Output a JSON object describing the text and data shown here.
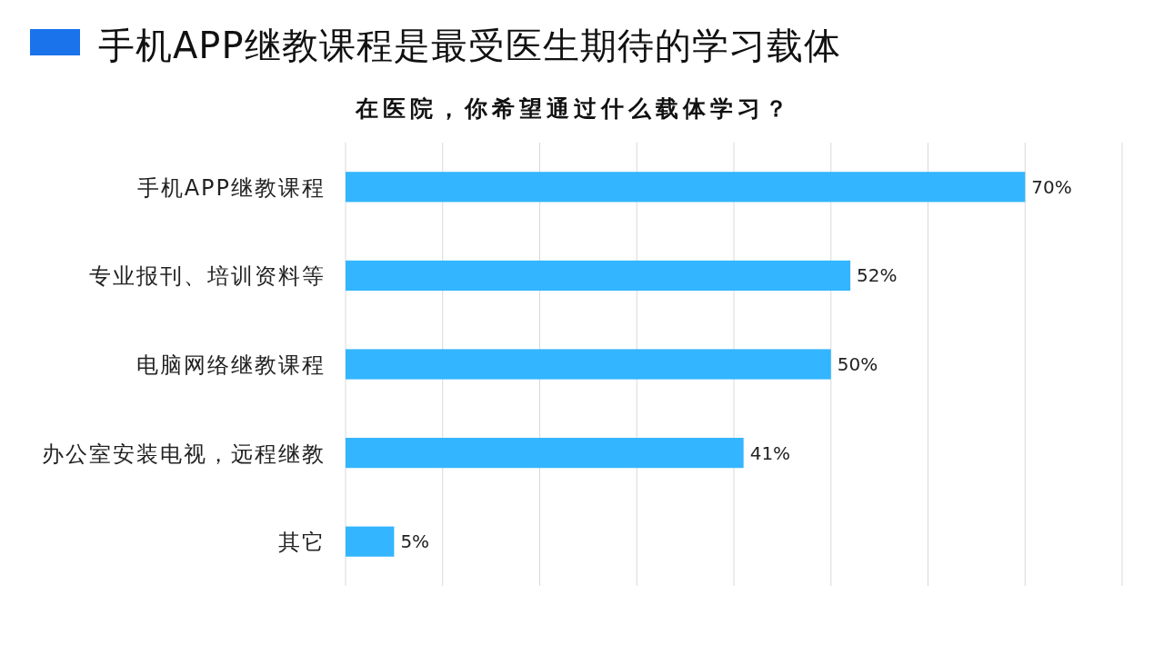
{
  "chart_data": {
    "type": "bar",
    "orientation": "horizontal",
    "title": "手机APP继教课程是最受医生期待的学习载体",
    "subtitle": "在医院，你希望通过什么载体学习？",
    "categories": [
      "手机APP继教课程",
      "专业报刊、培训资料等",
      "电脑网络继教课程",
      "办公室安装电视，远程继教",
      "其它"
    ],
    "values": [
      70,
      52,
      50,
      41,
      5
    ],
    "color": "#33b5ff",
    "value_labels": [
      "70%",
      "52%",
      "50%",
      "41%",
      "5%"
    ],
    "xlim": [
      0,
      80
    ],
    "xticks": [
      {
        "value": 0,
        "label": null
      },
      {
        "value": 10,
        "label": null
      },
      {
        "value": 20,
        "label": null
      },
      {
        "value": 30,
        "label": null
      },
      {
        "value": 40,
        "label": null
      },
      {
        "value": 50,
        "label": null
      },
      {
        "value": 60,
        "label": null
      },
      {
        "value": 70,
        "label": null
      },
      {
        "value": 80,
        "label": null
      }
    ],
    "grid": "x",
    "tick_labels": "y"
  }
}
